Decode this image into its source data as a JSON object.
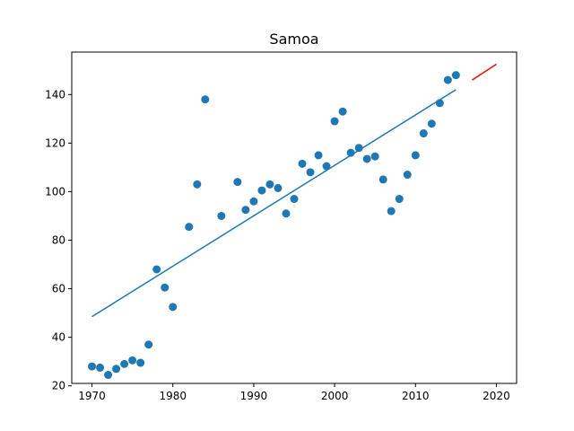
{
  "chart_data": {
    "type": "scatter",
    "title": "Samoa",
    "xlabel": "",
    "ylabel": "",
    "xlim": [
      1967.5,
      2022.5
    ],
    "ylim": [
      21,
      157.5
    ],
    "x_ticks": [
      1970,
      1980,
      1990,
      2000,
      2010,
      2020
    ],
    "y_ticks": [
      20,
      40,
      60,
      80,
      100,
      120,
      140
    ],
    "grid": false,
    "legend": "none",
    "colors": {
      "points": "#1f77b4",
      "fit": "#1f77b4",
      "forecast": "#ff0000"
    },
    "series": [
      {
        "kind": "scatter",
        "x": [
          1970,
          1971,
          1972,
          1973,
          1974,
          1975,
          1976,
          1977,
          1978,
          1979,
          1980,
          1982,
          1983,
          1984,
          1986,
          1988,
          1989,
          1990,
          1991,
          1992,
          1993,
          1994,
          1995,
          1996,
          1997,
          1998,
          1999,
          2000,
          2001,
          2002,
          2003,
          2004,
          2005,
          2006,
          2007,
          2008,
          2009,
          2010,
          2011,
          2012,
          2013,
          2014,
          2015
        ],
        "y": [
          28,
          27.5,
          24.5,
          27,
          29,
          30.5,
          29.5,
          37,
          68,
          60.5,
          52.5,
          85.5,
          103,
          138,
          90,
          104,
          92.5,
          96,
          100.5,
          103,
          101.5,
          91,
          97,
          111.5,
          108,
          115,
          110.5,
          129,
          133,
          116,
          118,
          113.5,
          114.5,
          105,
          92,
          97,
          107,
          115,
          124,
          128,
          136.5,
          146,
          148
        ]
      },
      {
        "kind": "line",
        "x": [
          1970,
          2015
        ],
        "y": [
          48.5,
          142
        ]
      },
      {
        "kind": "line",
        "x": [
          2017,
          2020
        ],
        "y": [
          146,
          152.5
        ]
      }
    ]
  }
}
